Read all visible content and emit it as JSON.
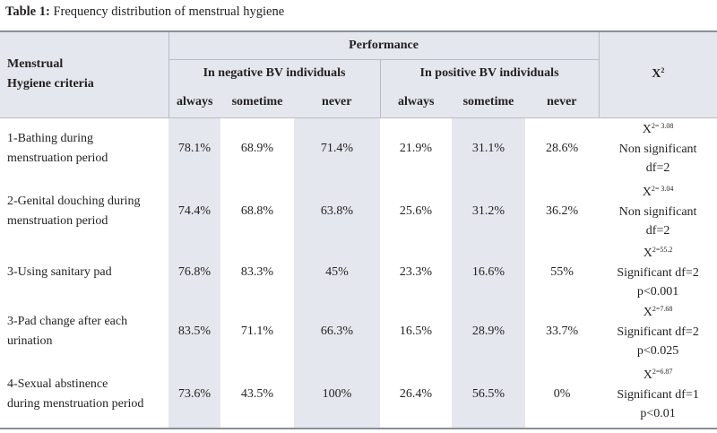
{
  "caption": {
    "label": "Table 1:",
    "text": "Frequency distribution of menstrual hygiene"
  },
  "header": {
    "criteria_line1": "Menstrual",
    "criteria_line2": "Hygiene criteria",
    "performance": "Performance",
    "negative_group": "In negative BV individuals",
    "positive_group": "In positive BV individuals",
    "x2_base": "X",
    "x2_sup": "2",
    "sub": [
      "always",
      "sometime",
      "never",
      "always",
      "sometime",
      "never"
    ]
  },
  "rows": [
    {
      "criteria": [
        "1-Bathing during",
        "menstruation period"
      ],
      "values": [
        "78.1%",
        "68.9%",
        "71.4%",
        "21.9%",
        "31.1%",
        "28.6%"
      ],
      "x2_base": "X",
      "x2_sup": "2= 3.08",
      "x2_lines": [
        "Non significant",
        "df=2"
      ]
    },
    {
      "criteria": [
        "2-Genital douching during",
        "menstruation period"
      ],
      "values": [
        "74.4%",
        "68.8%",
        "63.8%",
        "25.6%",
        "31.2%",
        "36.2%"
      ],
      "x2_base": "X",
      "x2_sup": "2= 3.04",
      "x2_lines": [
        "Non significant",
        "df=2"
      ]
    },
    {
      "criteria": [
        "3-Using sanitary pad",
        ""
      ],
      "values": [
        "76.8%",
        "83.3%",
        "45%",
        "23.3%",
        "16.6%",
        "55%"
      ],
      "x2_base": "X",
      "x2_sup": "2=55.2",
      "x2_lines": [
        "Significant  df=2",
        "p<0.001"
      ]
    },
    {
      "criteria": [
        "3-Pad change after each",
        "urination"
      ],
      "values": [
        "83.5%",
        "71.1%",
        "66.3%",
        "16.5%",
        "28.9%",
        "33.7%"
      ],
      "x2_base": "X",
      "x2_sup": "2=7.68",
      "x2_lines": [
        "Significant  df=2",
        "p<0.025"
      ]
    },
    {
      "criteria": [
        "4-Sexual abstinence",
        "during menstruation period"
      ],
      "values": [
        "73.6%",
        "43.5%",
        "100%",
        "26.4%",
        "56.5%",
        "0%"
      ],
      "x2_base": "X",
      "x2_sup": "2=6.87",
      "x2_lines": [
        "Significant  df=1",
        "p<0.01"
      ]
    }
  ]
}
